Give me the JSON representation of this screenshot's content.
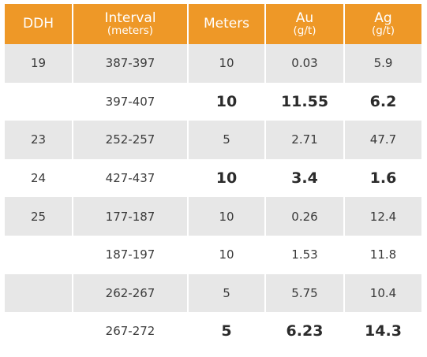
{
  "header": {
    "ddh": "DDH",
    "interval": "Interval",
    "interval_unit": "(meters)",
    "meters": "Meters",
    "au": "Au",
    "au_unit": "(g/t)",
    "ag": "Ag",
    "ag_unit": "(g/t)"
  },
  "rows": [
    {
      "ddh": "19",
      "interval": "387-397",
      "meters": "10",
      "au": "0.03",
      "ag": "5.9",
      "highlight": false
    },
    {
      "ddh": "",
      "interval": "397-407",
      "meters": "10",
      "au": "11.55",
      "ag": "6.2",
      "highlight": true
    },
    {
      "ddh": "23",
      "interval": "252-257",
      "meters": "5",
      "au": "2.71",
      "ag": "47.7",
      "highlight": false
    },
    {
      "ddh": "24",
      "interval": "427-437",
      "meters": "10",
      "au": "3.4",
      "ag": "1.6",
      "highlight": true
    },
    {
      "ddh": "25",
      "interval": "177-187",
      "meters": "10",
      "au": "0.26",
      "ag": "12.4",
      "highlight": false
    },
    {
      "ddh": "",
      "interval": "187-197",
      "meters": "10",
      "au": "1.53",
      "ag": "11.8",
      "highlight": false
    },
    {
      "ddh": "",
      "interval": "262-267",
      "meters": "5",
      "au": "5.75",
      "ag": "10.4",
      "highlight": false
    },
    {
      "ddh": "",
      "interval": "267-272",
      "meters": "5",
      "au": "6.23",
      "ag": "14.3",
      "highlight": true
    }
  ],
  "colors": {
    "header_bg": "#ee9827",
    "header_text": "#ffffff",
    "row_shaded": "#e7e7e7",
    "row_plain": "#ffffff",
    "text": "#3a3a3a"
  }
}
